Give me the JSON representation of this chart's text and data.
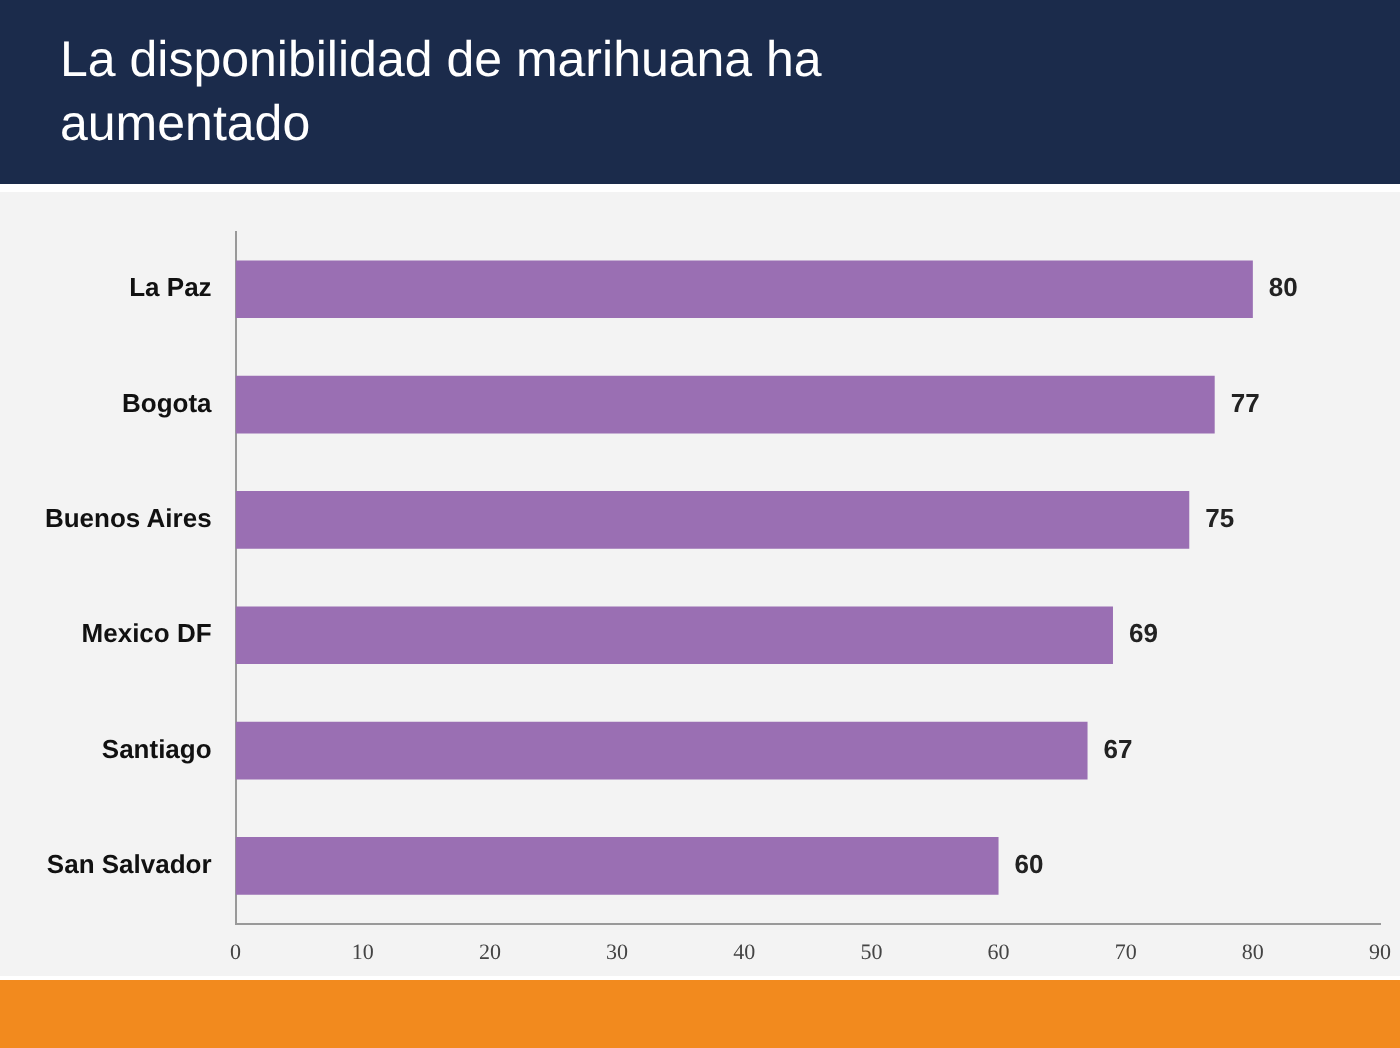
{
  "chart_data": {
    "type": "bar",
    "title": "La disponibilidad de marihuana ha aumentado",
    "orientation": "horizontal",
    "categories": [
      "La Paz",
      "Bogota",
      "Buenos Aires",
      "Mexico DF",
      "Santiago",
      "San Salvador"
    ],
    "values": [
      80,
      77,
      75,
      69,
      67,
      60
    ],
    "color": "#9a6fb3",
    "xlim": [
      0,
      90
    ],
    "xticks": [
      0,
      10,
      20,
      30,
      40,
      50,
      60,
      70,
      80,
      90
    ],
    "grid": false,
    "data_labels": true
  }
}
